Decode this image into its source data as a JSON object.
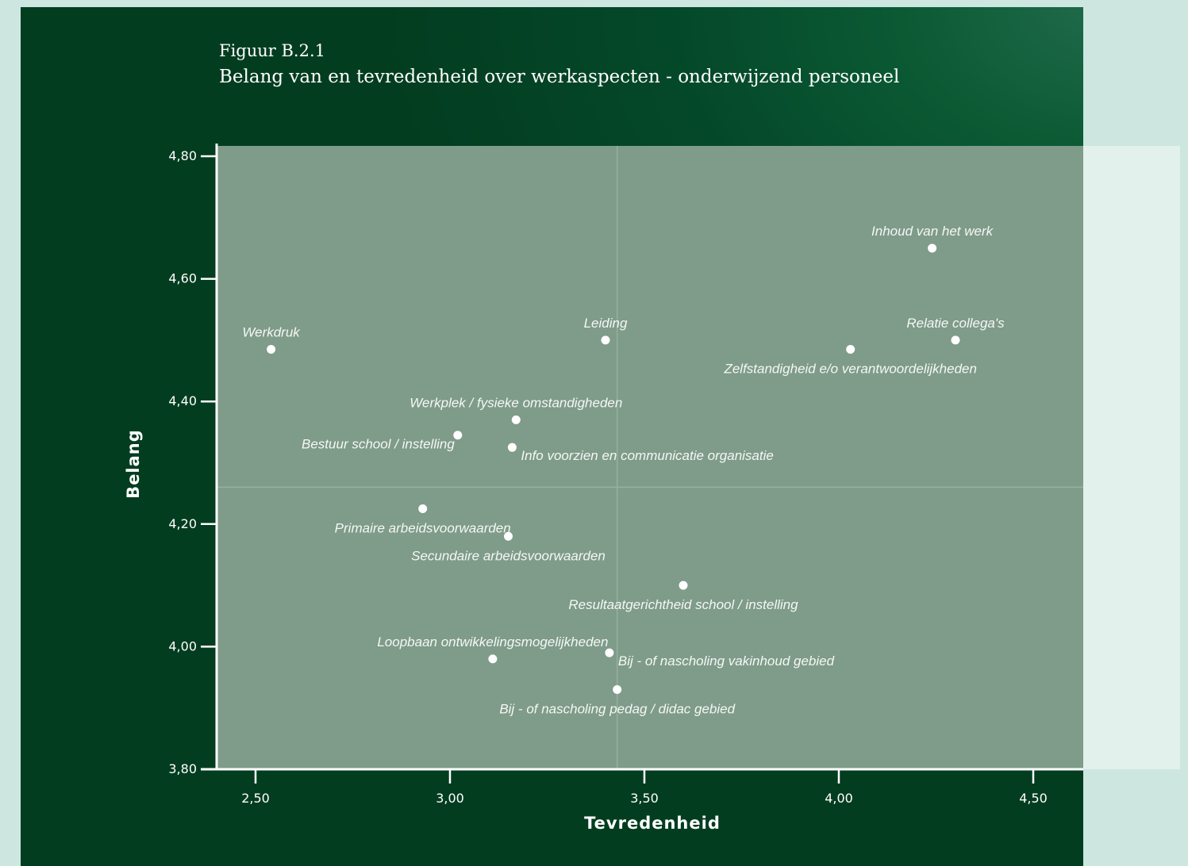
{
  "figure": {
    "number": "Figuur B.2.1",
    "title": "Belang van en tevredenheid over werkaspecten - onderwijzend personeel"
  },
  "colors": {
    "page_background": "#cde6e0",
    "panel_background": "#04482a",
    "plot_area": "#7f9b89",
    "points": "#ffffff",
    "right_strip": "#e3f1ed"
  },
  "chart_data": {
    "type": "scatter",
    "title": "Belang van en tevredenheid over werkaspecten - onderwijzend personeel",
    "xlabel": "Tevredenheid",
    "ylabel": "Belang",
    "xlim": [
      2.4,
      4.63
    ],
    "ylim": [
      3.8,
      4.8
    ],
    "x_ticks": [
      2.5,
      3.0,
      3.5,
      4.0,
      4.5
    ],
    "x_tick_labels": [
      "2,50",
      "3,00",
      "3,50",
      "4,00",
      "4,50"
    ],
    "y_ticks": [
      3.8,
      4.0,
      4.2,
      4.4,
      4.6,
      4.8
    ],
    "y_tick_labels": [
      "3,80",
      "4,00",
      "4,20",
      "4,40",
      "4,60",
      "4,80"
    ],
    "quadrant_lines": {
      "x": 3.43,
      "y": 4.26
    },
    "grid": false,
    "legend": "none",
    "points": [
      {
        "label": "Werkdruk",
        "x": 2.54,
        "y": 4.485,
        "label_pos": "above"
      },
      {
        "label": "Leiding",
        "x": 3.4,
        "y": 4.5,
        "label_pos": "above"
      },
      {
        "label": "Inhoud van het werk",
        "x": 4.24,
        "y": 4.65,
        "label_pos": "above"
      },
      {
        "label": "Relatie collega's",
        "x": 4.3,
        "y": 4.5,
        "label_pos": "above"
      },
      {
        "label": "Zelfstandigheid e/o verantwoordelijkheden",
        "x": 4.03,
        "y": 4.485,
        "label_pos": "below"
      },
      {
        "label": "Werkplek / fysieke omstandigheden",
        "x": 3.17,
        "y": 4.37,
        "label_pos": "above"
      },
      {
        "label": "Bestuur school / instelling",
        "x": 3.02,
        "y": 4.345,
        "label_pos": "left"
      },
      {
        "label": "Info voorzien en communicatie organisatie",
        "x": 3.16,
        "y": 4.325,
        "label_pos": "right"
      },
      {
        "label": "Primaire arbeidsvoorwaarden",
        "x": 2.93,
        "y": 4.225,
        "label_pos": "below"
      },
      {
        "label": "Secundaire arbeidsvoorwaarden",
        "x": 3.15,
        "y": 4.18,
        "label_pos": "below"
      },
      {
        "label": "Resultaatgerichtheid school / instelling",
        "x": 3.6,
        "y": 4.1,
        "label_pos": "below"
      },
      {
        "label": "Loopbaan ontwikkelingsmogelijkheden",
        "x": 3.11,
        "y": 3.98,
        "label_pos": "above"
      },
      {
        "label": "Bij - of nascholing vakinhoud gebied",
        "x": 3.41,
        "y": 3.99,
        "label_pos": "right"
      },
      {
        "label": "Bij - of nascholing pedag / didac gebied",
        "x": 3.43,
        "y": 3.93,
        "label_pos": "below"
      }
    ]
  }
}
